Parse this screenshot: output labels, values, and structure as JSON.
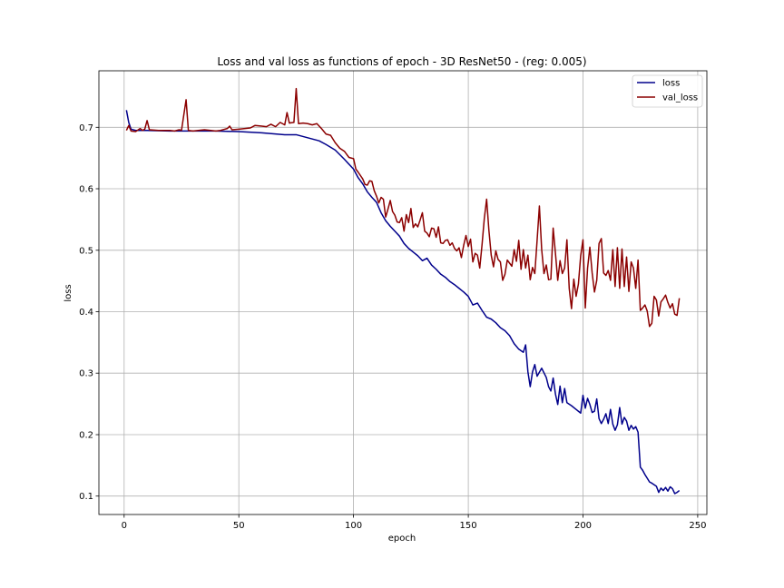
{
  "chart_data": {
    "type": "line",
    "title": "Loss and val loss as functions of epoch - 3D ResNet50 - (reg: 0.005)",
    "xlabel": "epoch",
    "ylabel": "loss",
    "xlim": [
      -11,
      254
    ],
    "ylim": [
      0.07,
      0.792
    ],
    "xticks": [
      0,
      50,
      100,
      150,
      200,
      250
    ],
    "yticks": [
      0.1,
      0.2,
      0.3,
      0.4,
      0.5,
      0.6,
      0.7
    ],
    "grid": true,
    "legend_position": "top-right",
    "series": [
      {
        "name": "loss",
        "color": "#00008b",
        "points": [
          [
            1,
            0.728
          ],
          [
            2,
            0.708
          ],
          [
            3,
            0.697
          ],
          [
            5,
            0.695
          ],
          [
            10,
            0.695
          ],
          [
            20,
            0.694
          ],
          [
            30,
            0.694
          ],
          [
            40,
            0.694
          ],
          [
            50,
            0.693
          ],
          [
            60,
            0.691
          ],
          [
            70,
            0.688
          ],
          [
            75,
            0.688
          ],
          [
            80,
            0.683
          ],
          [
            85,
            0.678
          ],
          [
            88,
            0.672
          ],
          [
            92,
            0.663
          ],
          [
            96,
            0.648
          ],
          [
            100,
            0.632
          ],
          [
            102,
            0.618
          ],
          [
            104,
            0.608
          ],
          [
            106,
            0.595
          ],
          [
            108,
            0.586
          ],
          [
            110,
            0.578
          ],
          [
            112,
            0.561
          ],
          [
            114,
            0.548
          ],
          [
            116,
            0.539
          ],
          [
            118,
            0.531
          ],
          [
            120,
            0.523
          ],
          [
            122,
            0.511
          ],
          [
            124,
            0.503
          ],
          [
            126,
            0.497
          ],
          [
            128,
            0.491
          ],
          [
            130,
            0.483
          ],
          [
            132,
            0.487
          ],
          [
            134,
            0.476
          ],
          [
            136,
            0.469
          ],
          [
            138,
            0.461
          ],
          [
            140,
            0.456
          ],
          [
            142,
            0.449
          ],
          [
            144,
            0.444
          ],
          [
            146,
            0.438
          ],
          [
            148,
            0.432
          ],
          [
            150,
            0.425
          ],
          [
            152,
            0.411
          ],
          [
            154,
            0.414
          ],
          [
            156,
            0.402
          ],
          [
            158,
            0.391
          ],
          [
            160,
            0.388
          ],
          [
            162,
            0.382
          ],
          [
            164,
            0.374
          ],
          [
            166,
            0.369
          ],
          [
            168,
            0.361
          ],
          [
            170,
            0.348
          ],
          [
            172,
            0.339
          ],
          [
            174,
            0.334
          ],
          [
            175,
            0.346
          ],
          [
            176,
            0.302
          ],
          [
            177,
            0.278
          ],
          [
            178,
            0.302
          ],
          [
            179,
            0.314
          ],
          [
            180,
            0.295
          ],
          [
            182,
            0.308
          ],
          [
            184,
            0.293
          ],
          [
            185,
            0.278
          ],
          [
            186,
            0.271
          ],
          [
            187,
            0.292
          ],
          [
            188,
            0.266
          ],
          [
            189,
            0.249
          ],
          [
            190,
            0.279
          ],
          [
            191,
            0.252
          ],
          [
            192,
            0.275
          ],
          [
            193,
            0.252
          ],
          [
            195,
            0.247
          ],
          [
            197,
            0.241
          ],
          [
            199,
            0.235
          ],
          [
            200,
            0.264
          ],
          [
            201,
            0.243
          ],
          [
            202,
            0.259
          ],
          [
            203,
            0.249
          ],
          [
            204,
            0.236
          ],
          [
            205,
            0.238
          ],
          [
            206,
            0.258
          ],
          [
            207,
            0.226
          ],
          [
            208,
            0.218
          ],
          [
            209,
            0.225
          ],
          [
            210,
            0.234
          ],
          [
            211,
            0.218
          ],
          [
            212,
            0.241
          ],
          [
            213,
            0.217
          ],
          [
            214,
            0.207
          ],
          [
            215,
            0.216
          ],
          [
            216,
            0.244
          ],
          [
            217,
            0.217
          ],
          [
            218,
            0.228
          ],
          [
            219,
            0.222
          ],
          [
            220,
            0.207
          ],
          [
            221,
            0.215
          ],
          [
            222,
            0.209
          ],
          [
            223,
            0.213
          ],
          [
            224,
            0.204
          ],
          [
            225,
            0.147
          ],
          [
            226,
            0.142
          ],
          [
            227,
            0.135
          ],
          [
            228,
            0.129
          ],
          [
            229,
            0.123
          ],
          [
            230,
            0.121
          ],
          [
            232,
            0.116
          ],
          [
            233,
            0.106
          ],
          [
            234,
            0.113
          ],
          [
            235,
            0.109
          ],
          [
            236,
            0.114
          ],
          [
            237,
            0.108
          ],
          [
            238,
            0.115
          ],
          [
            239,
            0.112
          ],
          [
            240,
            0.104
          ],
          [
            241,
            0.106
          ],
          [
            242,
            0.109
          ]
        ]
      },
      {
        "name": "val_loss",
        "color": "#8b0000",
        "points": [
          [
            1,
            0.695
          ],
          [
            2,
            0.703
          ],
          [
            3,
            0.694
          ],
          [
            5,
            0.693
          ],
          [
            7,
            0.698
          ],
          [
            8,
            0.695
          ],
          [
            9,
            0.697
          ],
          [
            10,
            0.711
          ],
          [
            11,
            0.696
          ],
          [
            15,
            0.695
          ],
          [
            20,
            0.695
          ],
          [
            22,
            0.694
          ],
          [
            24,
            0.696
          ],
          [
            25,
            0.695
          ],
          [
            27,
            0.745
          ],
          [
            28,
            0.695
          ],
          [
            30,
            0.694
          ],
          [
            35,
            0.696
          ],
          [
            40,
            0.694
          ],
          [
            42,
            0.695
          ],
          [
            45,
            0.698
          ],
          [
            46,
            0.702
          ],
          [
            47,
            0.696
          ],
          [
            50,
            0.697
          ],
          [
            55,
            0.699
          ],
          [
            57,
            0.703
          ],
          [
            60,
            0.702
          ],
          [
            62,
            0.701
          ],
          [
            64,
            0.705
          ],
          [
            66,
            0.701
          ],
          [
            68,
            0.708
          ],
          [
            70,
            0.704
          ],
          [
            71,
            0.724
          ],
          [
            72,
            0.707
          ],
          [
            74,
            0.708
          ],
          [
            75,
            0.763
          ],
          [
            76,
            0.706
          ],
          [
            78,
            0.707
          ],
          [
            80,
            0.706
          ],
          [
            82,
            0.704
          ],
          [
            84,
            0.706
          ],
          [
            86,
            0.698
          ],
          [
            88,
            0.689
          ],
          [
            90,
            0.687
          ],
          [
            92,
            0.675
          ],
          [
            94,
            0.666
          ],
          [
            96,
            0.661
          ],
          [
            98,
            0.651
          ],
          [
            100,
            0.649
          ],
          [
            101,
            0.632
          ],
          [
            102,
            0.627
          ],
          [
            104,
            0.616
          ],
          [
            105,
            0.607
          ],
          [
            106,
            0.606
          ],
          [
            107,
            0.613
          ],
          [
            108,
            0.612
          ],
          [
            109,
            0.597
          ],
          [
            110,
            0.588
          ],
          [
            111,
            0.577
          ],
          [
            112,
            0.586
          ],
          [
            113,
            0.583
          ],
          [
            114,
            0.554
          ],
          [
            115,
            0.567
          ],
          [
            116,
            0.581
          ],
          [
            117,
            0.563
          ],
          [
            118,
            0.557
          ],
          [
            119,
            0.546
          ],
          [
            120,
            0.545
          ],
          [
            121,
            0.553
          ],
          [
            122,
            0.531
          ],
          [
            123,
            0.558
          ],
          [
            124,
            0.545
          ],
          [
            125,
            0.568
          ],
          [
            126,
            0.537
          ],
          [
            127,
            0.543
          ],
          [
            128,
            0.538
          ],
          [
            129,
            0.549
          ],
          [
            130,
            0.561
          ],
          [
            131,
            0.531
          ],
          [
            132,
            0.528
          ],
          [
            133,
            0.522
          ],
          [
            134,
            0.536
          ],
          [
            135,
            0.535
          ],
          [
            136,
            0.521
          ],
          [
            137,
            0.538
          ],
          [
            138,
            0.512
          ],
          [
            139,
            0.511
          ],
          [
            140,
            0.516
          ],
          [
            141,
            0.517
          ],
          [
            142,
            0.508
          ],
          [
            143,
            0.512
          ],
          [
            144,
            0.503
          ],
          [
            145,
            0.499
          ],
          [
            146,
            0.504
          ],
          [
            147,
            0.488
          ],
          [
            148,
            0.508
          ],
          [
            149,
            0.524
          ],
          [
            150,
            0.506
          ],
          [
            151,
            0.518
          ],
          [
            152,
            0.481
          ],
          [
            153,
            0.495
          ],
          [
            154,
            0.492
          ],
          [
            155,
            0.471
          ],
          [
            156,
            0.509
          ],
          [
            157,
            0.552
          ],
          [
            158,
            0.583
          ],
          [
            159,
            0.532
          ],
          [
            160,
            0.492
          ],
          [
            161,
            0.473
          ],
          [
            162,
            0.499
          ],
          [
            163,
            0.485
          ],
          [
            164,
            0.481
          ],
          [
            165,
            0.451
          ],
          [
            166,
            0.461
          ],
          [
            167,
            0.484
          ],
          [
            168,
            0.479
          ],
          [
            169,
            0.474
          ],
          [
            170,
            0.501
          ],
          [
            171,
            0.482
          ],
          [
            172,
            0.516
          ],
          [
            173,
            0.469
          ],
          [
            174,
            0.501
          ],
          [
            175,
            0.471
          ],
          [
            176,
            0.492
          ],
          [
            177,
            0.452
          ],
          [
            178,
            0.472
          ],
          [
            179,
            0.462
          ],
          [
            180,
            0.516
          ],
          [
            181,
            0.572
          ],
          [
            182,
            0.501
          ],
          [
            183,
            0.462
          ],
          [
            184,
            0.476
          ],
          [
            185,
            0.452
          ],
          [
            186,
            0.453
          ],
          [
            187,
            0.536
          ],
          [
            188,
            0.495
          ],
          [
            189,
            0.451
          ],
          [
            190,
            0.483
          ],
          [
            191,
            0.462
          ],
          [
            192,
            0.471
          ],
          [
            193,
            0.517
          ],
          [
            194,
            0.438
          ],
          [
            195,
            0.405
          ],
          [
            196,
            0.453
          ],
          [
            197,
            0.425
          ],
          [
            198,
            0.445
          ],
          [
            199,
            0.491
          ],
          [
            200,
            0.517
          ],
          [
            201,
            0.406
          ],
          [
            202,
            0.471
          ],
          [
            203,
            0.505
          ],
          [
            204,
            0.463
          ],
          [
            205,
            0.432
          ],
          [
            206,
            0.451
          ],
          [
            207,
            0.511
          ],
          [
            208,
            0.519
          ],
          [
            209,
            0.463
          ],
          [
            210,
            0.459
          ],
          [
            211,
            0.467
          ],
          [
            212,
            0.451
          ],
          [
            213,
            0.501
          ],
          [
            214,
            0.441
          ],
          [
            215,
            0.504
          ],
          [
            216,
            0.438
          ],
          [
            217,
            0.502
          ],
          [
            218,
            0.441
          ],
          [
            219,
            0.489
          ],
          [
            220,
            0.433
          ],
          [
            221,
            0.481
          ],
          [
            222,
            0.471
          ],
          [
            223,
            0.438
          ],
          [
            224,
            0.484
          ],
          [
            225,
            0.402
          ],
          [
            226,
            0.406
          ],
          [
            227,
            0.411
          ],
          [
            228,
            0.401
          ],
          [
            229,
            0.376
          ],
          [
            230,
            0.381
          ],
          [
            231,
            0.425
          ],
          [
            232,
            0.419
          ],
          [
            233,
            0.393
          ],
          [
            234,
            0.416
          ],
          [
            235,
            0.421
          ],
          [
            236,
            0.427
          ],
          [
            237,
            0.415
          ],
          [
            238,
            0.406
          ],
          [
            239,
            0.413
          ],
          [
            240,
            0.396
          ],
          [
            241,
            0.394
          ],
          [
            242,
            0.422
          ]
        ]
      }
    ]
  }
}
